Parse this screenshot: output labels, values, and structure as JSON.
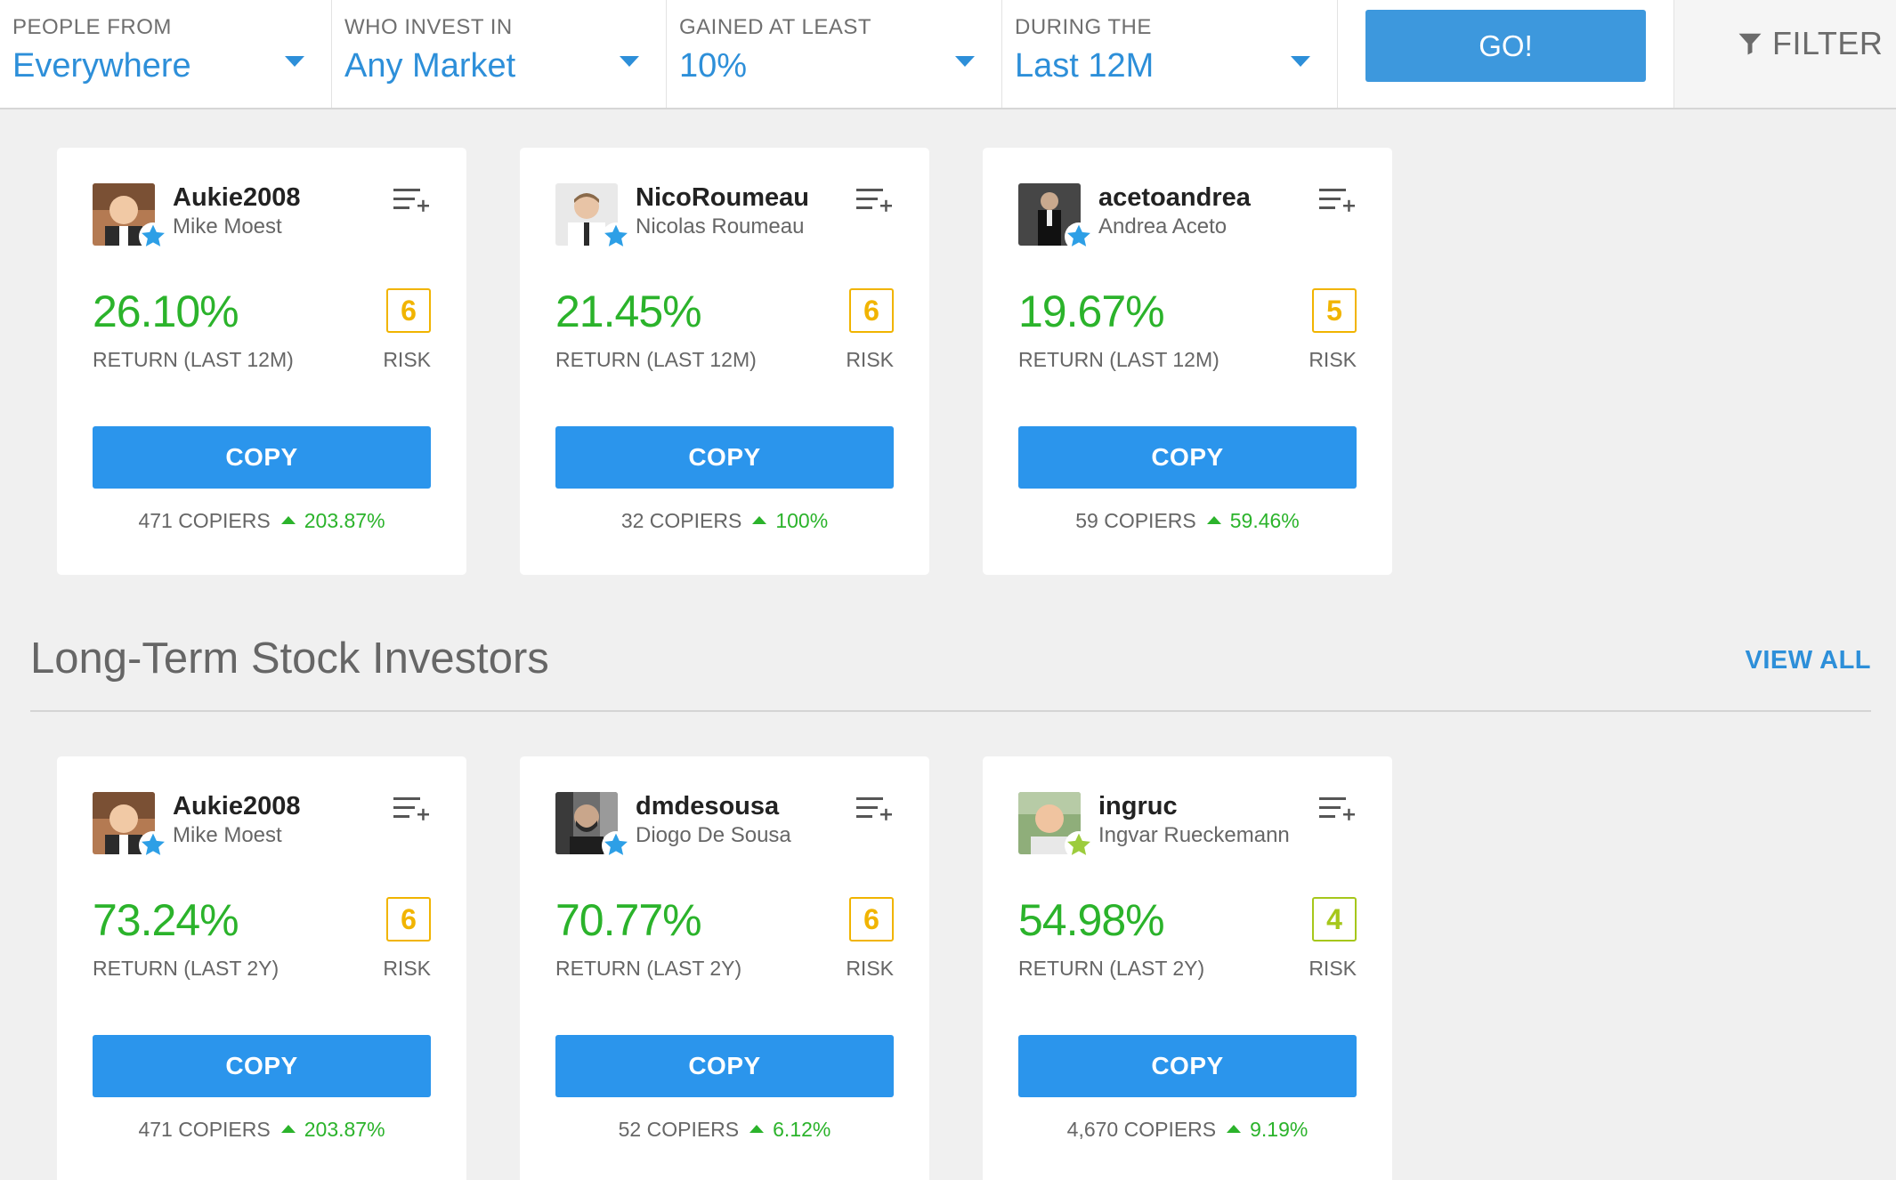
{
  "filters": [
    {
      "label": "PEOPLE FROM",
      "value": "Everywhere"
    },
    {
      "label": "WHO INVEST IN",
      "value": "Any Market"
    },
    {
      "label": "GAINED AT LEAST",
      "value": "10%"
    },
    {
      "label": "DURING THE",
      "value": "Last 12M"
    }
  ],
  "go_label": "GO!",
  "filter_label": "FILTER",
  "colors": {
    "accent": "#2b95ec",
    "gain": "#2bb32b",
    "risk_orange": "#f1b400",
    "risk_green": "#a6c71b",
    "star_blue": "#2d9fe6",
    "star_green": "#9ccc3c"
  },
  "top_cards": [
    {
      "username": "Aukie2008",
      "name": "Mike Moest",
      "gain": "26.10%",
      "gain_label": "RETURN (LAST 12M)",
      "risk": "6",
      "risk_label": "RISK",
      "copy_label": "COPY",
      "copiers": "471 COPIERS",
      "copiers_change": "203.87%",
      "star": "blue-star-icon"
    },
    {
      "username": "NicoRoumeau",
      "name": "Nicolas Roumeau",
      "gain": "21.45%",
      "gain_label": "RETURN (LAST 12M)",
      "risk": "6",
      "risk_label": "RISK",
      "copy_label": "COPY",
      "copiers": "32 COPIERS",
      "copiers_change": "100%",
      "star": "blue-star-icon"
    },
    {
      "username": "acetoandrea",
      "name": "Andrea Aceto",
      "gain": "19.67%",
      "gain_label": "RETURN (LAST 12M)",
      "risk": "5",
      "risk_label": "RISK",
      "copy_label": "COPY",
      "copiers": "59 COPIERS",
      "copiers_change": "59.46%",
      "star": "blue-star-icon"
    }
  ],
  "section": {
    "title": "Long-Term Stock Investors",
    "view_all": "VIEW ALL"
  },
  "section_cards": [
    {
      "username": "Aukie2008",
      "name": "Mike Moest",
      "gain": "73.24%",
      "gain_label": "RETURN (LAST 2Y)",
      "risk": "6",
      "risk_label": "RISK",
      "copy_label": "COPY",
      "copiers": "471 COPIERS",
      "copiers_change": "203.87%",
      "star": "blue-star-icon"
    },
    {
      "username": "dmdesousa",
      "name": "Diogo De Sousa",
      "gain": "70.77%",
      "gain_label": "RETURN (LAST 2Y)",
      "risk": "6",
      "risk_label": "RISK",
      "copy_label": "COPY",
      "copiers": "52 COPIERS",
      "copiers_change": "6.12%",
      "star": "blue-star-icon"
    },
    {
      "username": "ingruc",
      "name": "Ingvar Rueckemann",
      "gain": "54.98%",
      "gain_label": "RETURN (LAST 2Y)",
      "risk": "4",
      "risk_label": "RISK",
      "copy_label": "COPY",
      "copiers": "4,670 COPIERS",
      "copiers_change": "9.19%",
      "star": "green-star-icon"
    }
  ]
}
